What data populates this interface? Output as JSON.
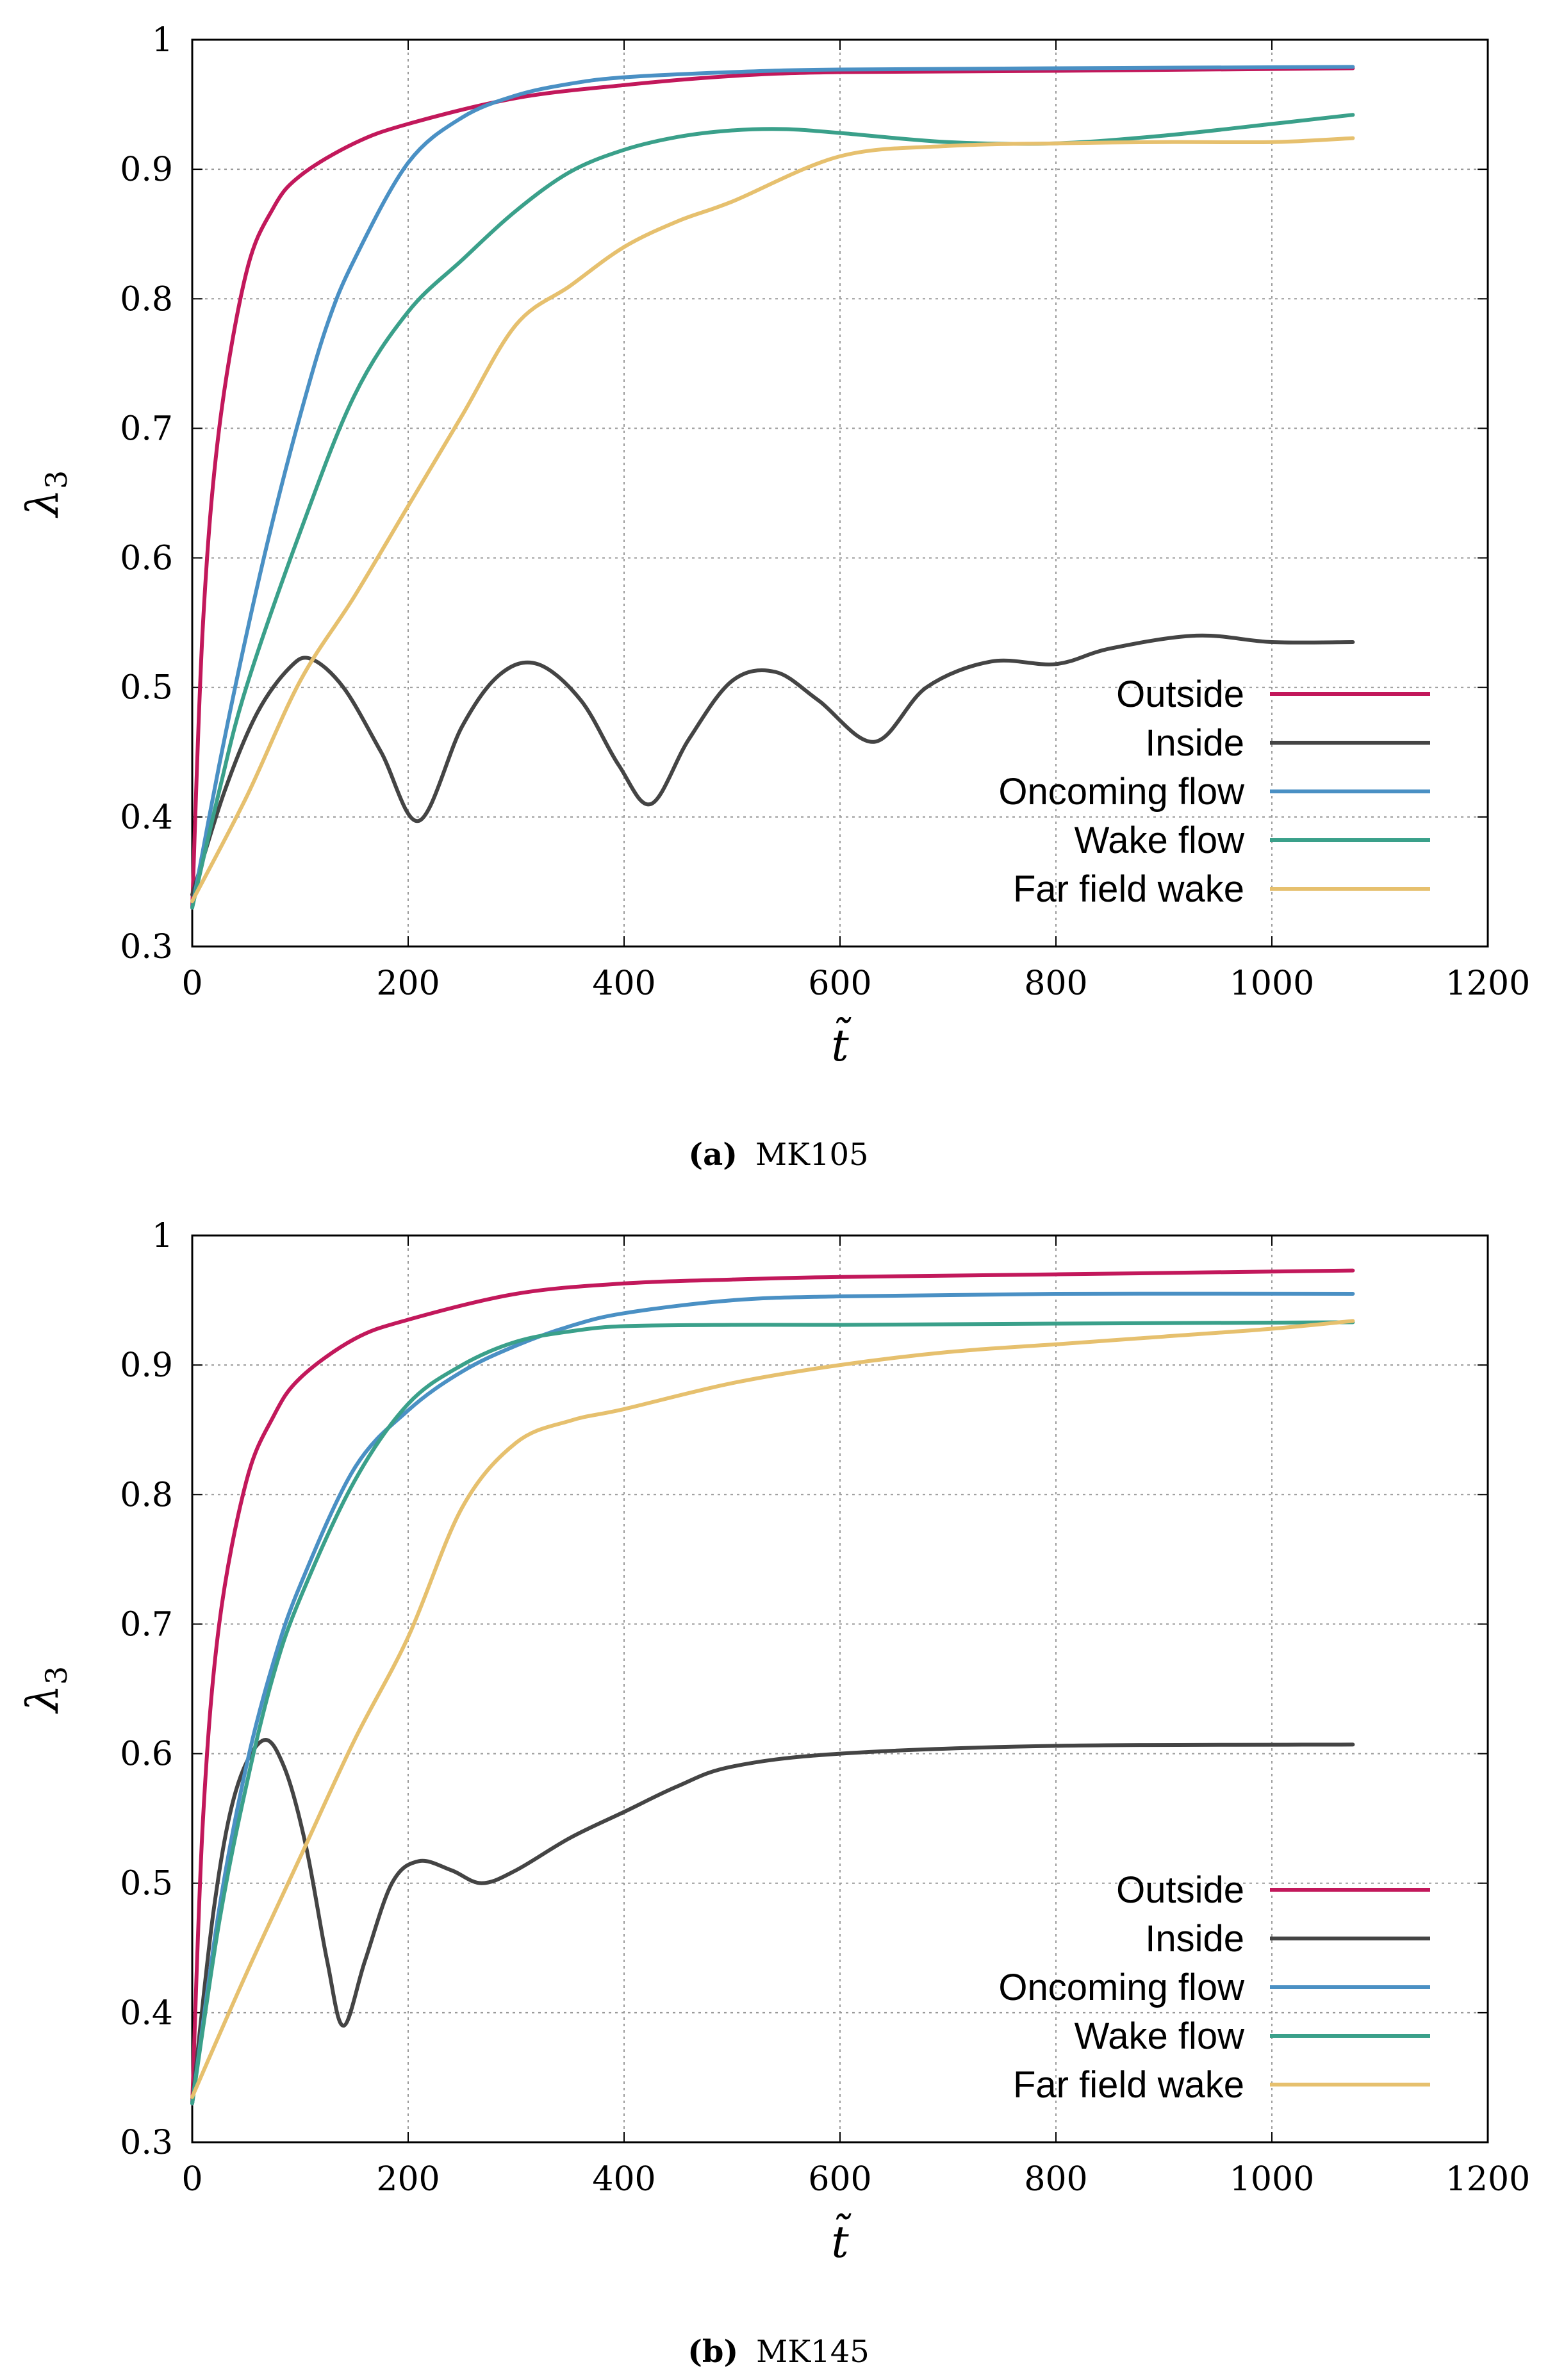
{
  "chart_data": [
    {
      "type": "line",
      "panel": "a",
      "caption_label": "(a)",
      "caption_text": "MK105",
      "xlabel": "t̃",
      "ylabel_main": "λ",
      "ylabel_sub": "3",
      "xlim": [
        0,
        1200
      ],
      "ylim": [
        0.3,
        1.0
      ],
      "xticks": [
        "0",
        "200",
        "400",
        "600",
        "800",
        "1000",
        "1200"
      ],
      "yticks": [
        "0.3",
        "0.4",
        "0.5",
        "0.6",
        "0.7",
        "0.8",
        "0.9",
        "1"
      ],
      "grid": true,
      "legend_position": "bottom-right",
      "series": [
        {
          "name": "Outside",
          "color": "#c2185b",
          "x": [
            0,
            10,
            25,
            50,
            75,
            100,
            150,
            200,
            300,
            400,
            500,
            600,
            800,
            1075
          ],
          "y": [
            0.33,
            0.55,
            0.7,
            0.82,
            0.87,
            0.895,
            0.92,
            0.935,
            0.955,
            0.965,
            0.972,
            0.975,
            0.976,
            0.978
          ]
        },
        {
          "name": "Inside",
          "color": "#444444",
          "x": [
            0,
            30,
            60,
            90,
            110,
            140,
            175,
            210,
            250,
            285,
            320,
            360,
            395,
            425,
            460,
            500,
            540,
            580,
            632,
            680,
            740,
            800,
            850,
            930,
            1000,
            1075
          ],
          "y": [
            0.34,
            0.42,
            0.48,
            0.515,
            0.522,
            0.5,
            0.45,
            0.397,
            0.47,
            0.51,
            0.518,
            0.49,
            0.44,
            0.41,
            0.46,
            0.505,
            0.512,
            0.49,
            0.458,
            0.5,
            0.52,
            0.518,
            0.53,
            0.54,
            0.535,
            0.535
          ]
        },
        {
          "name": "Oncoming flow",
          "color": "#4a90c4",
          "x": [
            0,
            25,
            50,
            75,
            100,
            125,
            150,
            200,
            250,
            300,
            350,
            400,
            500,
            600,
            800,
            1075
          ],
          "y": [
            0.33,
            0.44,
            0.54,
            0.63,
            0.71,
            0.78,
            0.83,
            0.905,
            0.94,
            0.957,
            0.966,
            0.971,
            0.975,
            0.977,
            0.978,
            0.979
          ]
        },
        {
          "name": "Wake flow",
          "color": "#3aa08a",
          "x": [
            0,
            25,
            50,
            100,
            150,
            200,
            250,
            300,
            350,
            400,
            450,
            500,
            550,
            600,
            700,
            800,
            900,
            1000,
            1075
          ],
          "y": [
            0.33,
            0.42,
            0.5,
            0.62,
            0.725,
            0.79,
            0.83,
            0.868,
            0.898,
            0.915,
            0.925,
            0.93,
            0.931,
            0.928,
            0.921,
            0.92,
            0.926,
            0.935,
            0.942
          ]
        },
        {
          "name": "Far field wake",
          "color": "#e6c06e",
          "x": [
            0,
            50,
            100,
            150,
            200,
            250,
            300,
            350,
            400,
            450,
            500,
            600,
            700,
            800,
            900,
            1000,
            1075
          ],
          "y": [
            0.335,
            0.415,
            0.505,
            0.57,
            0.64,
            0.71,
            0.78,
            0.81,
            0.84,
            0.86,
            0.875,
            0.91,
            0.918,
            0.92,
            0.921,
            0.921,
            0.924
          ]
        }
      ]
    },
    {
      "type": "line",
      "panel": "b",
      "caption_label": "(b)",
      "caption_text": "MK145",
      "xlabel": "t̃",
      "ylabel_main": "λ",
      "ylabel_sub": "3",
      "xlim": [
        0,
        1200
      ],
      "ylim": [
        0.3,
        1.0
      ],
      "xticks": [
        "0",
        "200",
        "400",
        "600",
        "800",
        "1000",
        "1200"
      ],
      "yticks": [
        "0.3",
        "0.4",
        "0.5",
        "0.6",
        "0.7",
        "0.8",
        "0.9",
        "1"
      ],
      "grid": true,
      "legend_position": "bottom-right",
      "series": [
        {
          "name": "Outside",
          "color": "#c2185b",
          "x": [
            0,
            10,
            25,
            50,
            75,
            100,
            150,
            200,
            300,
            400,
            500,
            600,
            800,
            1075
          ],
          "y": [
            0.33,
            0.55,
            0.7,
            0.81,
            0.86,
            0.89,
            0.92,
            0.935,
            0.955,
            0.963,
            0.966,
            0.968,
            0.97,
            0.973
          ]
        },
        {
          "name": "Inside",
          "color": "#444444",
          "x": [
            0,
            20,
            40,
            65,
            85,
            105,
            125,
            140,
            160,
            185,
            210,
            240,
            268,
            300,
            350,
            400,
            450,
            500,
            600,
            800,
            1075
          ],
          "y": [
            0.33,
            0.48,
            0.57,
            0.61,
            0.59,
            0.53,
            0.44,
            0.39,
            0.44,
            0.5,
            0.517,
            0.51,
            0.5,
            0.51,
            0.535,
            0.555,
            0.575,
            0.59,
            0.6,
            0.606,
            0.607
          ]
        },
        {
          "name": "Oncoming flow",
          "color": "#4a90c4",
          "x": [
            0,
            25,
            50,
            75,
            100,
            150,
            200,
            250,
            300,
            350,
            400,
            500,
            600,
            800,
            1075
          ],
          "y": [
            0.33,
            0.48,
            0.59,
            0.67,
            0.73,
            0.82,
            0.865,
            0.895,
            0.915,
            0.93,
            0.94,
            0.95,
            0.953,
            0.955,
            0.955
          ]
        },
        {
          "name": "Wake flow",
          "color": "#3aa08a",
          "x": [
            0,
            25,
            50,
            75,
            100,
            150,
            200,
            250,
            300,
            350,
            400,
            500,
            600,
            800,
            1075
          ],
          "y": [
            0.33,
            0.47,
            0.575,
            0.66,
            0.72,
            0.81,
            0.87,
            0.9,
            0.918,
            0.926,
            0.93,
            0.931,
            0.931,
            0.932,
            0.933
          ]
        },
        {
          "name": "Far field wake",
          "color": "#e6c06e",
          "x": [
            0,
            50,
            100,
            150,
            200,
            250,
            300,
            350,
            400,
            500,
            600,
            700,
            800,
            900,
            1000,
            1075
          ],
          "y": [
            0.335,
            0.43,
            0.52,
            0.61,
            0.69,
            0.79,
            0.84,
            0.857,
            0.866,
            0.886,
            0.9,
            0.91,
            0.916,
            0.922,
            0.928,
            0.934
          ]
        }
      ]
    }
  ]
}
